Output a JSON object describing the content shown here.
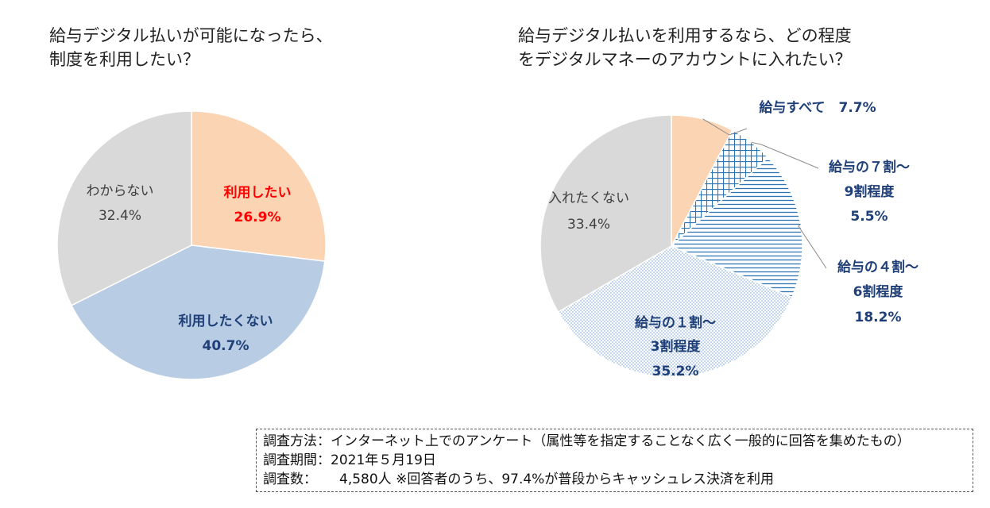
{
  "charts": {
    "left": {
      "title_line1": "給与デジタル払いが可能になったら、",
      "title_line2": "制度を利用したい？"
    },
    "right": {
      "title_line1": "給与デジタル払いを利用するなら、どの程度",
      "title_line2": "をデジタルマネーのアカウントに入れたい？"
    }
  },
  "chart_data": [
    {
      "type": "pie",
      "title": "給与デジタル払いが可能になったら、制度を利用したい？",
      "slices": [
        {
          "label": "利用したい",
          "value": 26.9,
          "value_text": "26.9%",
          "color": "#fbd4b4",
          "label_color": "#ff0000"
        },
        {
          "label": "利用したくない",
          "value": 40.7,
          "value_text": "40.7%",
          "color": "#b8cce4",
          "label_color": "#1f3f78"
        },
        {
          "label": "わからない",
          "value": 32.4,
          "value_text": "32.4%",
          "color": "#d9d9d9",
          "label_color": "#404040"
        }
      ]
    },
    {
      "type": "pie",
      "title": "給与デジタル払いを利用するなら、どの程度をデジタルマネーのアカウントに入れたい？",
      "slices": [
        {
          "label": "給与すべて",
          "value": 7.7,
          "value_text": "7.7%",
          "pattern": "solid",
          "color": "#fbd4b4"
        },
        {
          "label": "給与の７割～ 9割程度",
          "label_line1": "給与の７割～",
          "label_line2": "9割程度",
          "value": 5.5,
          "value_text": "5.5%",
          "pattern": "grid",
          "color": "#2e75b6"
        },
        {
          "label": "給与の４割～ 6割程度",
          "label_line1": "給与の４割～",
          "label_line2": "6割程度",
          "value": 18.2,
          "value_text": "18.2%",
          "pattern": "horizontal",
          "color": "#2e75b6"
        },
        {
          "label": "給与の１割～ 3割程度",
          "label_line1": "給与の１割～",
          "label_line2": "3割程度",
          "value": 35.2,
          "value_text": "35.2%",
          "pattern": "dots",
          "color": "#2e75b6"
        },
        {
          "label": "入れたくない",
          "value": 33.4,
          "value_text": "33.4%",
          "pattern": "solid",
          "color": "#d9d9d9"
        }
      ],
      "label_color": "#1f3f78",
      "other_label_color": "#404040"
    }
  ],
  "note": {
    "method_key": "調査方法：",
    "method_val": "インターネット上でのアンケート（属性等を指定することなく広く一般的に回答を集めたもの）",
    "period_key": "調査期間：",
    "period_val": "2021年５月19日",
    "count_key": "調査数：",
    "count_val": "4,580人 ※回答者のうち、97.4%が普段からキャッシュレス決済を利用"
  }
}
